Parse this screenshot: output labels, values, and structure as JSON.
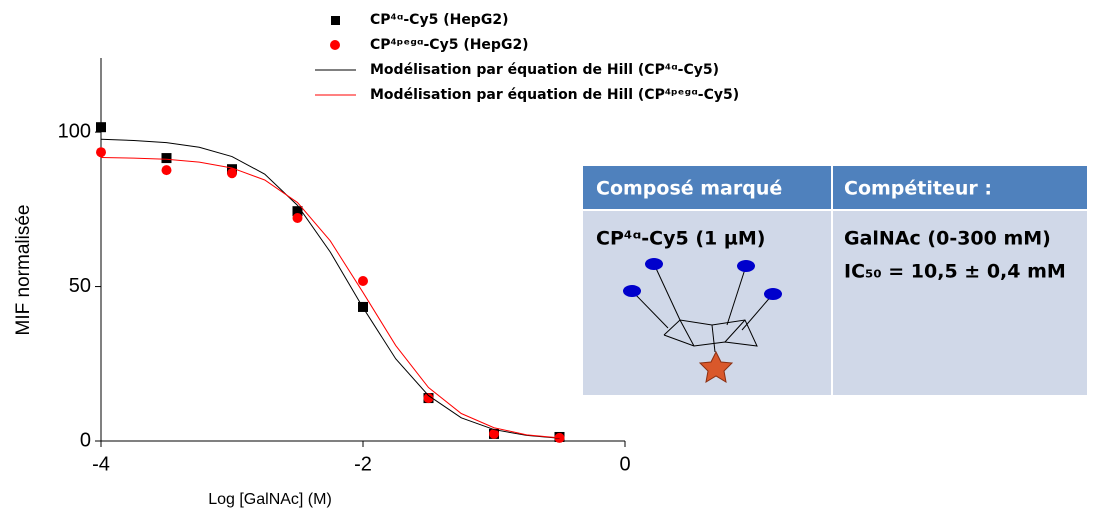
{
  "chart_data": {
    "type": "scatter",
    "xlabel": "Log [GalNAc] (M)",
    "ylabel": "MIF normalisée",
    "xlim": [
      -4,
      0
    ],
    "xticks": [
      -4,
      -2,
      0
    ],
    "ylim": [
      0,
      124
    ],
    "yticks": [
      0,
      50,
      100
    ],
    "x": [
      -4,
      -3.5,
      -3,
      -2.5,
      -2,
      -1.5,
      -1,
      -0.5
    ],
    "series": [
      {
        "name": "CP⁴ᵅ-Cy5 (HepG2)",
        "color": "#000000",
        "marker": "square",
        "values": [
          101.6,
          91.6,
          88,
          74.4,
          43.4,
          13.9,
          2.3,
          1.3
        ]
      },
      {
        "name": "CP⁴ᵖᵉᵍᵅ-Cy5 (HepG2)",
        "color": "#ff0000",
        "marker": "circle",
        "values": [
          93.5,
          87.7,
          86.7,
          72.2,
          51.8,
          13.9,
          2.3,
          1
        ]
      },
      {
        "name": "Modélisation par équation de Hill (CP⁴ᵅ-Cy5)",
        "color": "#000000",
        "marker": "line",
        "x": [
          -4,
          -3.75,
          -3.5,
          -3.25,
          -3,
          -2.75,
          -2.5,
          -2.25,
          -2,
          -1.75,
          -1.5,
          -1.25,
          -1,
          -0.75,
          -0.5
        ],
        "values": [
          97.7,
          97.3,
          96.6,
          95.1,
          92.1,
          86.4,
          76.3,
          61.2,
          43.2,
          26.6,
          14.7,
          7.5,
          3.7,
          1.8,
          0.9
        ]
      },
      {
        "name": "Modélisation par équation de Hill (CP⁴ᵖᵉᵍᵅ-Cy5)",
        "color": "#ff0000",
        "marker": "line",
        "x": [
          -4,
          -3.75,
          -3.5,
          -3.25,
          -3,
          -2.75,
          -2.5,
          -2.25,
          -2,
          -1.75,
          -1.5,
          -1.25,
          -1,
          -0.75,
          -0.5
        ],
        "values": [
          91.8,
          91.6,
          91.2,
          90.3,
          88.4,
          84.5,
          77.2,
          64.8,
          48.1,
          30.9,
          17.3,
          8.9,
          4.3,
          2,
          1
        ]
      }
    ]
  },
  "table": {
    "header": [
      "Composé marqué",
      "Compétiteur :"
    ],
    "rows": [
      [
        "CP⁴ᵅ-Cy5 (1 µM)",
        "GalNAc (0-300 mM)"
      ],
      [
        null,
        "IC₅₀ = 10,5 ± 0,4 mM"
      ]
    ]
  }
}
